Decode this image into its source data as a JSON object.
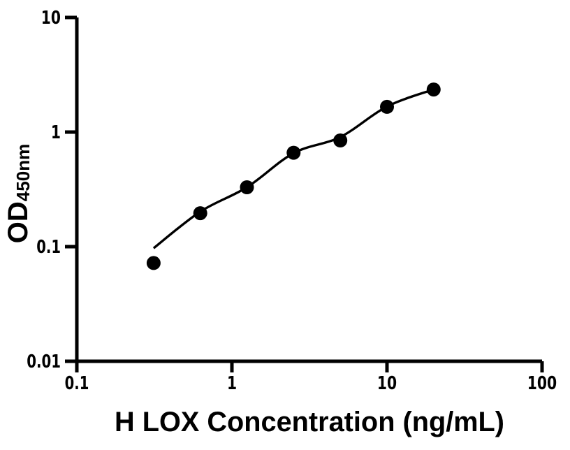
{
  "figure": {
    "background": "#ffffff"
  },
  "chart_data": {
    "type": "scatter",
    "title": "",
    "xlabel": "H LOX Concentration (ng/mL)",
    "ylabel": "OD450nm",
    "ylabel_main": "OD",
    "ylabel_sub": "450nm",
    "x_scale": "log10",
    "y_scale": "log10",
    "xlim": [
      0.1,
      100
    ],
    "ylim": [
      0.01,
      10
    ],
    "x_ticks": [
      {
        "value": 0.1,
        "label": "0.1"
      },
      {
        "value": 1,
        "label": "1"
      },
      {
        "value": 10,
        "label": "10"
      },
      {
        "value": 100,
        "label": "100"
      }
    ],
    "y_ticks": [
      {
        "value": 0.01,
        "label": "0.01"
      },
      {
        "value": 0.1,
        "label": "0.1"
      },
      {
        "value": 1,
        "label": "1"
      },
      {
        "value": 10,
        "label": "10"
      }
    ],
    "grid": false,
    "legend": "none",
    "axis_color": "#000000",
    "marker_color": "#000000",
    "curve_color": "#000000",
    "series": [
      {
        "name": "standard data points",
        "type": "scatter",
        "marker": "filled-circle",
        "x": [
          0.3125,
          0.625,
          1.25,
          2.5,
          5,
          10,
          20
        ],
        "y": [
          0.072,
          0.196,
          0.33,
          0.66,
          0.845,
          1.66,
          2.35
        ]
      },
      {
        "name": "fitted standard curve",
        "type": "line",
        "x": [
          0.3125,
          0.625,
          1.25,
          2.5,
          5,
          10,
          20
        ],
        "y": [
          0.097,
          0.202,
          0.33,
          0.655,
          0.905,
          1.67,
          2.355
        ]
      }
    ]
  }
}
